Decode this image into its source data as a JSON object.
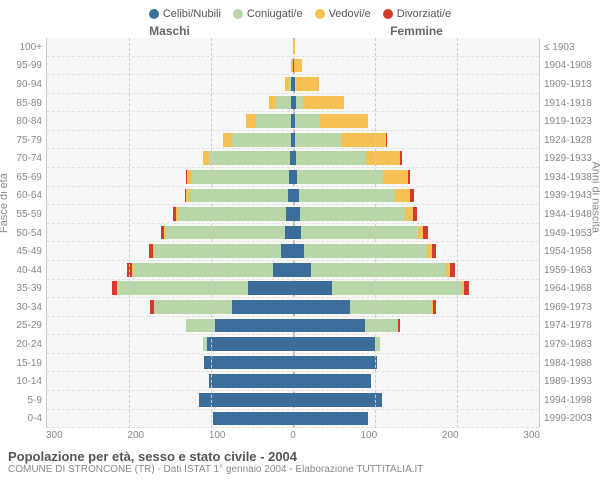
{
  "legend": [
    {
      "label": "Celibi/Nubili",
      "color": "#3b6e9a"
    },
    {
      "label": "Coniugati/e",
      "color": "#b8d6a8"
    },
    {
      "label": "Vedovi/e",
      "color": "#f5c154"
    },
    {
      "label": "Divorziati/e",
      "color": "#d43b2c"
    }
  ],
  "headers": {
    "male": "Maschi",
    "female": "Femmine"
  },
  "y_left_title": "Fasce di età",
  "y_right_title": "Anni di nascita",
  "age_labels": [
    "100+",
    "95-99",
    "90-94",
    "85-89",
    "80-84",
    "75-79",
    "70-74",
    "65-69",
    "60-64",
    "55-59",
    "50-54",
    "45-49",
    "40-44",
    "35-39",
    "30-34",
    "25-29",
    "20-24",
    "15-19",
    "10-14",
    "5-9",
    "0-4"
  ],
  "year_labels": [
    "≤ 1903",
    "1904-1908",
    "1909-1913",
    "1914-1918",
    "1919-1923",
    "1924-1928",
    "1929-1933",
    "1934-1938",
    "1939-1943",
    "1944-1948",
    "1949-1953",
    "1954-1958",
    "1959-1963",
    "1964-1968",
    "1969-1973",
    "1974-1978",
    "1979-1983",
    "1984-1988",
    "1989-1993",
    "1994-1998",
    "1999-2003"
  ],
  "x_ticks": [
    "300",
    "200",
    "100",
    "0",
    "100",
    "200",
    "300"
  ],
  "x_max": 300,
  "data": [
    {
      "m": [
        0,
        0,
        0,
        0
      ],
      "f": [
        0,
        0,
        2,
        0
      ]
    },
    {
      "m": [
        0,
        0,
        2,
        0
      ],
      "f": [
        1,
        0,
        10,
        0
      ]
    },
    {
      "m": [
        2,
        3,
        5,
        0
      ],
      "f": [
        2,
        2,
        28,
        0
      ]
    },
    {
      "m": [
        3,
        18,
        8,
        0
      ],
      "f": [
        4,
        8,
        50,
        0
      ]
    },
    {
      "m": [
        3,
        42,
        12,
        0
      ],
      "f": [
        3,
        30,
        58,
        0
      ]
    },
    {
      "m": [
        3,
        72,
        10,
        0
      ],
      "f": [
        3,
        55,
        55,
        2
      ]
    },
    {
      "m": [
        4,
        98,
        8,
        0
      ],
      "f": [
        4,
        85,
        42,
        2
      ]
    },
    {
      "m": [
        5,
        118,
        6,
        2
      ],
      "f": [
        5,
        105,
        30,
        3
      ]
    },
    {
      "m": [
        6,
        120,
        4,
        2
      ],
      "f": [
        7,
        118,
        18,
        4
      ]
    },
    {
      "m": [
        8,
        132,
        3,
        3
      ],
      "f": [
        8,
        128,
        10,
        5
      ]
    },
    {
      "m": [
        10,
        145,
        2,
        4
      ],
      "f": [
        10,
        142,
        7,
        6
      ]
    },
    {
      "m": [
        15,
        155,
        1,
        5
      ],
      "f": [
        14,
        150,
        5,
        6
      ]
    },
    {
      "m": [
        25,
        170,
        1,
        6
      ],
      "f": [
        22,
        165,
        4,
        7
      ]
    },
    {
      "m": [
        55,
        160,
        0,
        6
      ],
      "f": [
        48,
        158,
        2,
        7
      ]
    },
    {
      "m": [
        75,
        95,
        0,
        4
      ],
      "f": [
        70,
        100,
        1,
        4
      ]
    },
    {
      "m": [
        95,
        35,
        0,
        1
      ],
      "f": [
        88,
        40,
        0,
        2
      ]
    },
    {
      "m": [
        105,
        5,
        0,
        0
      ],
      "f": [
        100,
        6,
        0,
        0
      ]
    },
    {
      "m": [
        108,
        0,
        0,
        0
      ],
      "f": [
        102,
        0,
        0,
        0
      ]
    },
    {
      "m": [
        102,
        0,
        0,
        0
      ],
      "f": [
        95,
        0,
        0,
        0
      ]
    },
    {
      "m": [
        115,
        0,
        0,
        0
      ],
      "f": [
        108,
        0,
        0,
        0
      ]
    },
    {
      "m": [
        98,
        0,
        0,
        0
      ],
      "f": [
        92,
        0,
        0,
        0
      ]
    }
  ],
  "title": "Popolazione per età, sesso e stato civile - 2004",
  "subtitle": "COMUNE DI STRONCONE (TR) - Dati ISTAT 1° gennaio 2004 - Elaborazione TUTTITALIA.IT"
}
